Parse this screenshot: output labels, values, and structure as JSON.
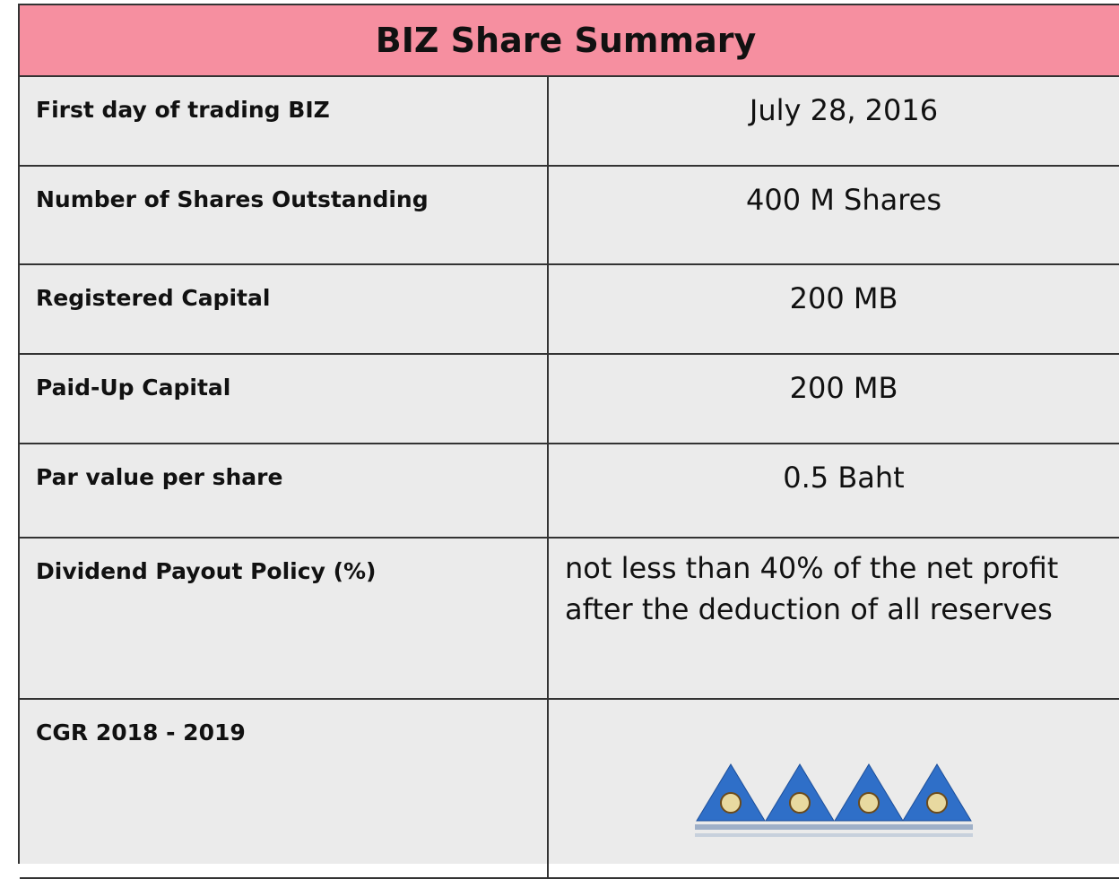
{
  "title": "BIZ Share Summary",
  "rows": [
    {
      "label": "First day of trading BIZ",
      "value": "July 28, 2016"
    },
    {
      "label": "Number of Shares Outstanding",
      "value": "400 M Shares"
    },
    {
      "label": "Registered Capital",
      "value": "200 MB"
    },
    {
      "label": "Paid-Up Capital",
      "value": "200 MB"
    },
    {
      "label": "Par value per share",
      "value": "0.5 Baht"
    },
    {
      "label": "Dividend Payout Policy (%)",
      "value": "not less than 40% of the net profit after the deduction of all reserves"
    },
    {
      "label": "CGR 2018 - 2019"
    }
  ]
}
